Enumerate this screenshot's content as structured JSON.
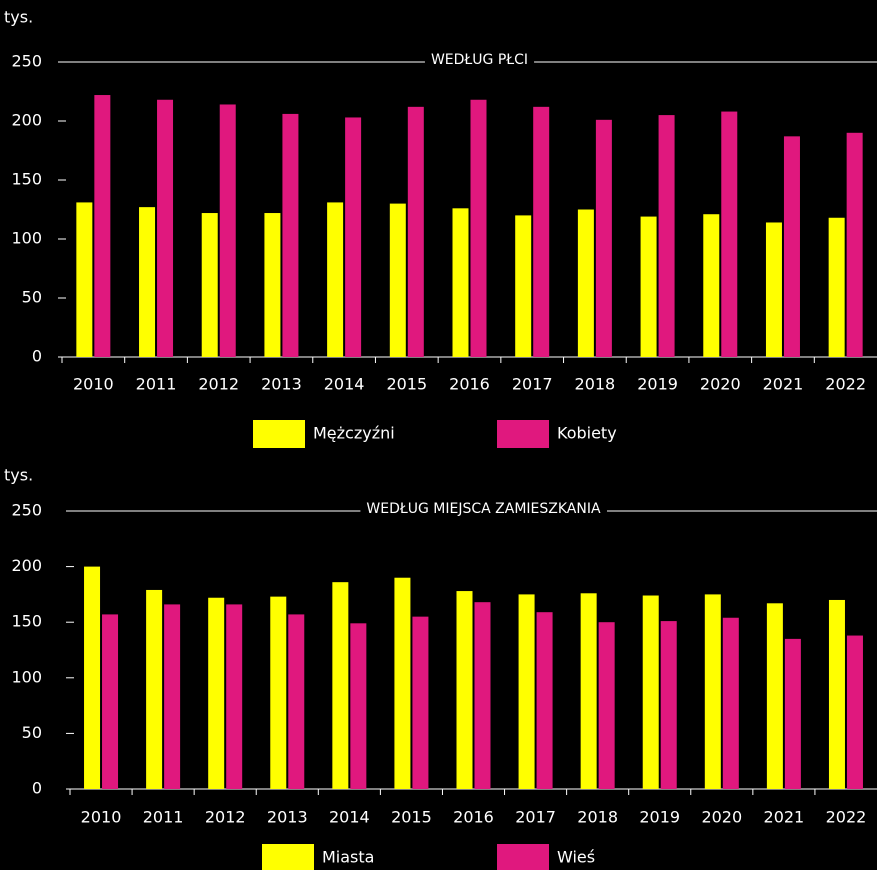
{
  "chart_data": [
    {
      "type": "bar",
      "title": "WEDŁUG PŁCI",
      "ylabel": "tys.",
      "categories": [
        "2010",
        "2011",
        "2012",
        "2013",
        "2014",
        "2015",
        "2016",
        "2017",
        "2018",
        "2019",
        "2020",
        "2021",
        "2022"
      ],
      "series": [
        {
          "name": "Mężczyźni",
          "color": "#ffff00",
          "values": [
            131,
            127,
            122,
            122,
            131,
            130,
            126,
            120,
            125,
            119,
            121,
            114,
            118
          ]
        },
        {
          "name": "Kobiety",
          "color": "#e0187e",
          "values": [
            222,
            218,
            214,
            206,
            203,
            212,
            218,
            212,
            201,
            205,
            208,
            187,
            190
          ]
        }
      ],
      "ylim": [
        0,
        250
      ],
      "yticks": [
        0,
        50,
        100,
        150,
        200,
        250
      ]
    },
    {
      "type": "bar",
      "title": "WEDŁUG MIEJSCA ZAMIESZKANIA",
      "ylabel": "tys.",
      "categories": [
        "2010",
        "2011",
        "2012",
        "2013",
        "2014",
        "2015",
        "2016",
        "2017",
        "2018",
        "2019",
        "2020",
        "2021",
        "2022"
      ],
      "series": [
        {
          "name": "Miasta",
          "color": "#ffff00",
          "values": [
            200,
            179,
            172,
            173,
            186,
            190,
            178,
            175,
            176,
            174,
            175,
            167,
            170
          ]
        },
        {
          "name": "Wieś",
          "color": "#e0187e",
          "values": [
            157,
            166,
            166,
            157,
            149,
            155,
            168,
            159,
            150,
            151,
            154,
            135,
            138
          ]
        }
      ],
      "ylim": [
        0,
        250
      ],
      "yticks": [
        0,
        50,
        100,
        150,
        200,
        250
      ]
    }
  ]
}
